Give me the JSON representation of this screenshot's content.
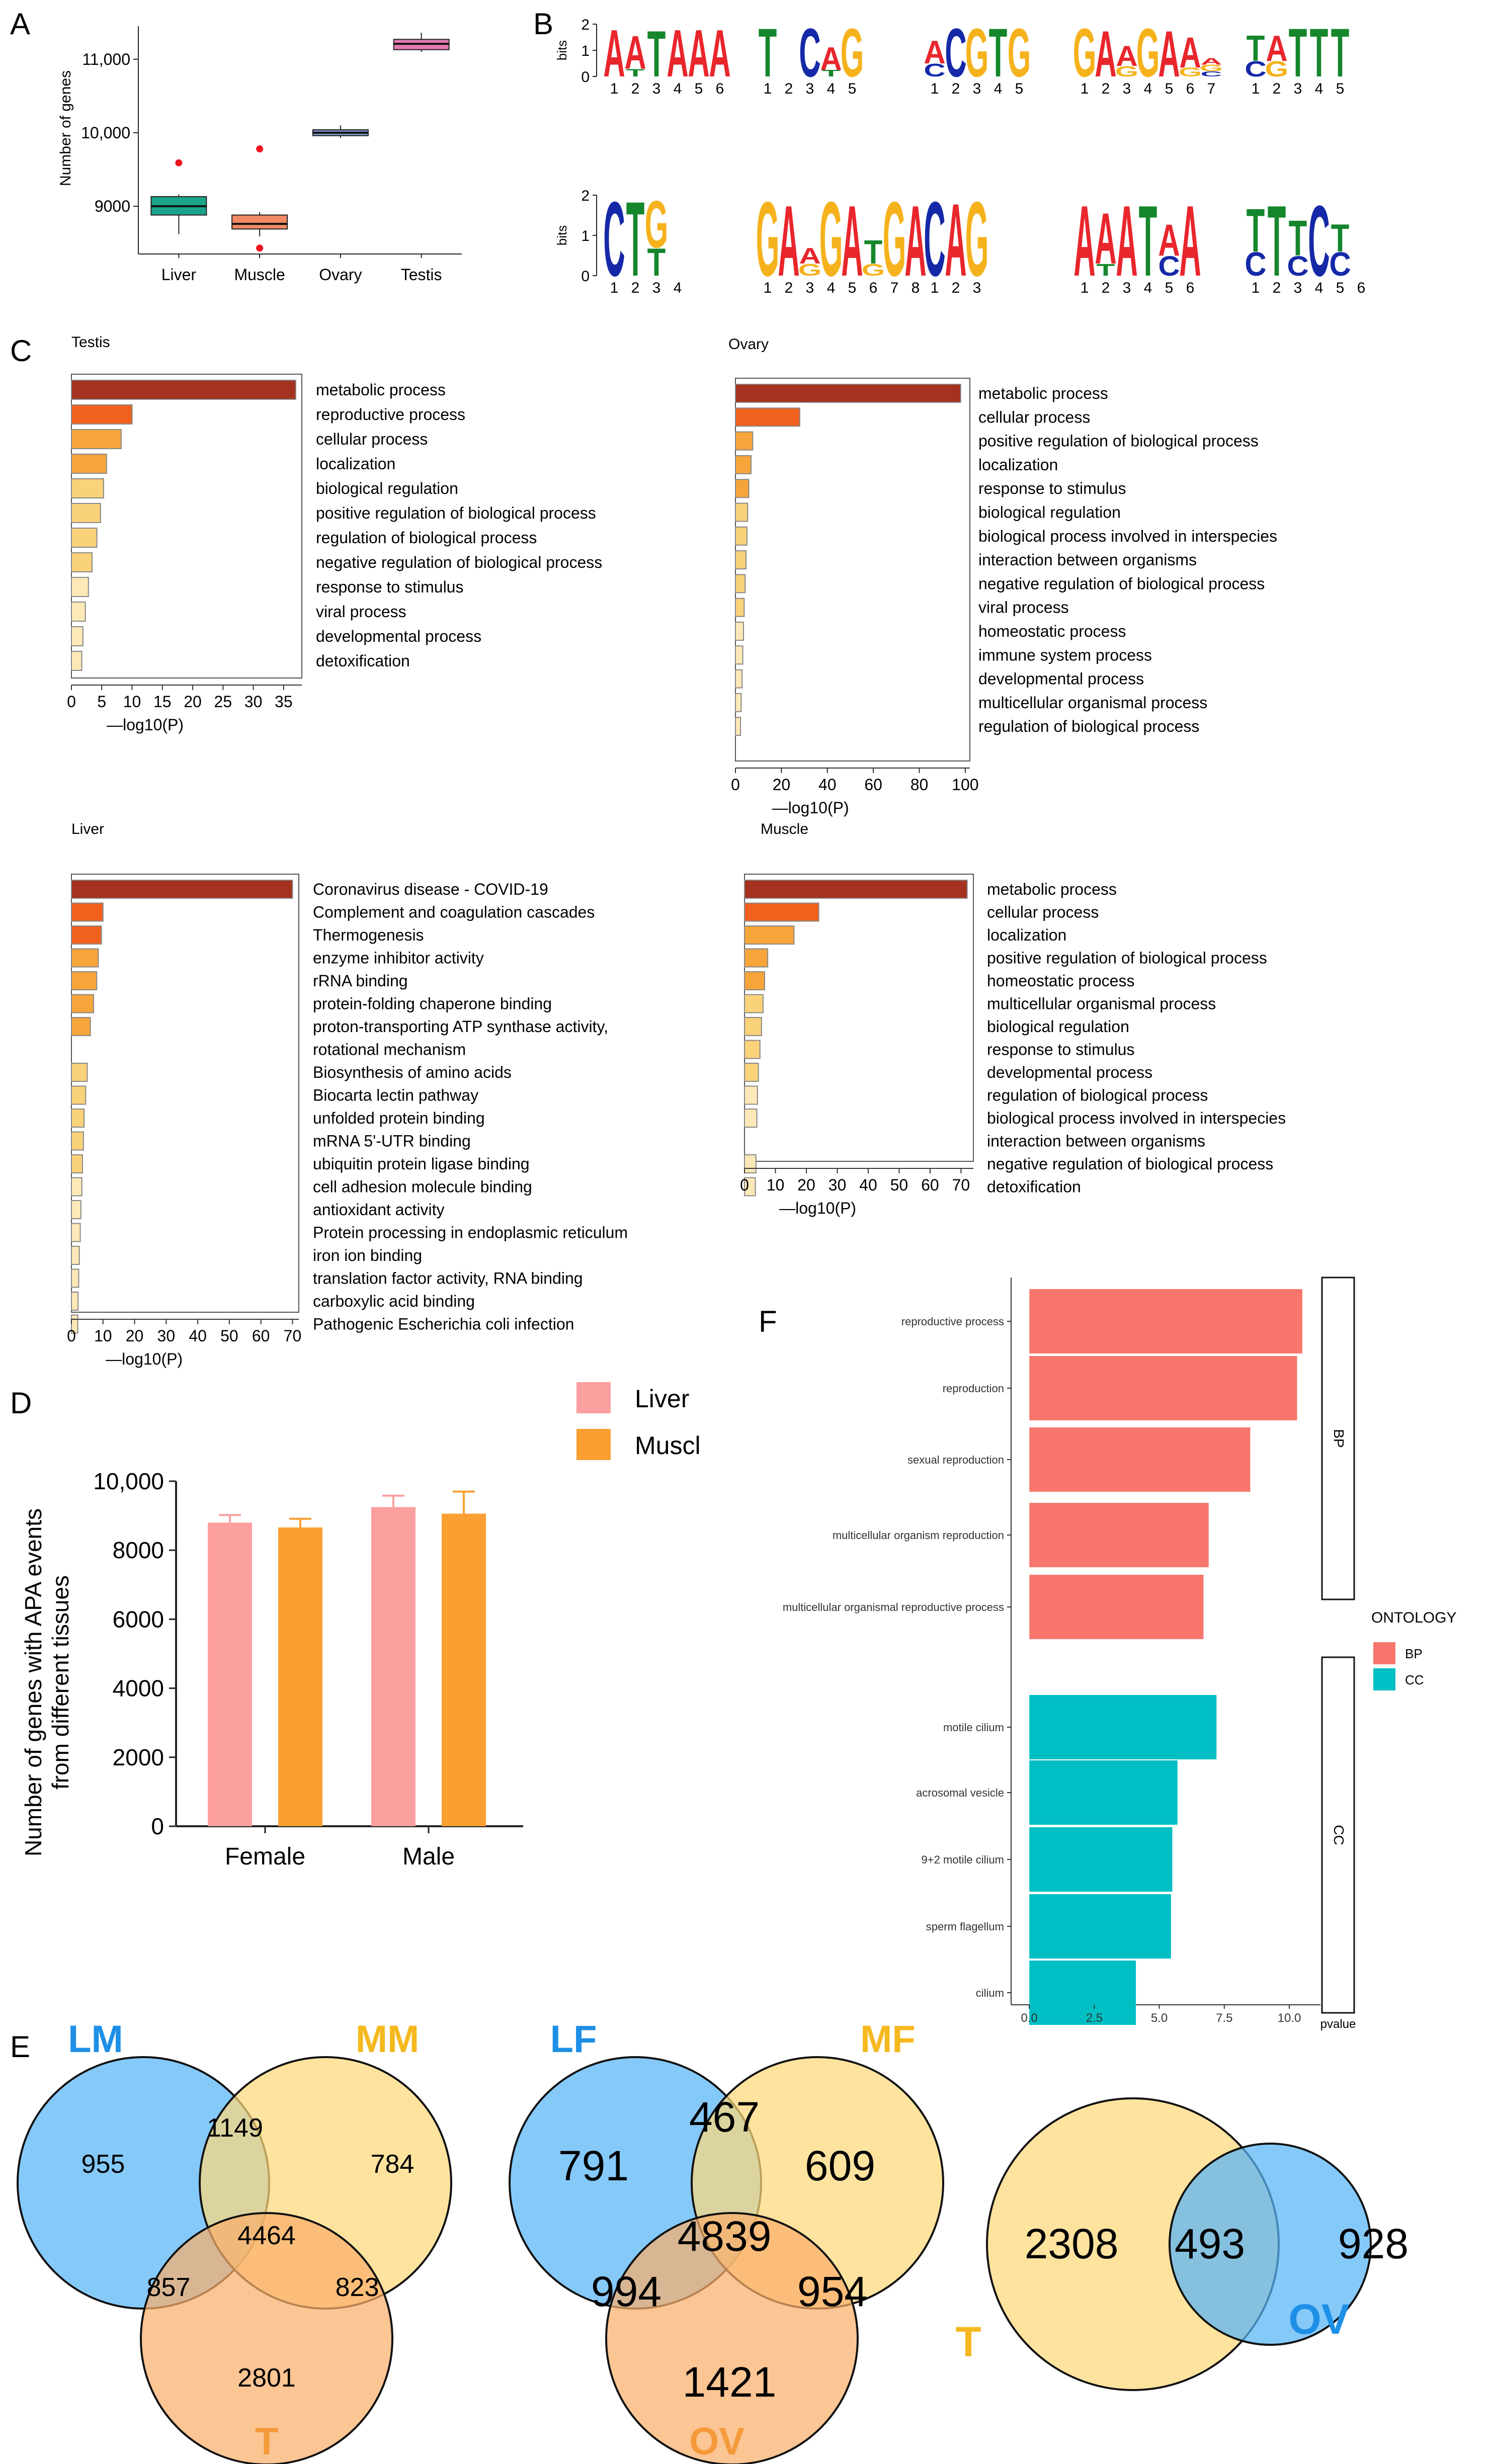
{
  "figure_labels": {
    "A": "A",
    "B": "B",
    "C": "C",
    "D": "D",
    "E": "E",
    "F": "F"
  },
  "colors": {
    "go_dark": "#a5311f",
    "go_mid": "#f0611e",
    "go_orange": "#f5a53a",
    "go_light": "#fad27a",
    "go_pale": "#fde8b8",
    "liver_box": "#1aa58a",
    "muscle_box": "#f08964",
    "ovary_box": "#7c98c6",
    "testis_box": "#e47cb2",
    "liver_bar": "#fc9f9f",
    "muscle_bar": "#fa9f32",
    "bp": "#f8766d",
    "cc": "#00bfc4",
    "venn_blue": "#56b4f6",
    "venn_yellow": "#fdd87a",
    "venn_orange": "#f9ae6b",
    "label_blue": "#1e8fe6",
    "label_yellow": "#f5b81e",
    "label_orange": "#f59a3a",
    "logo_A": "#e8262c",
    "logo_C": "#1529a8",
    "logo_G": "#f5b21c",
    "logo_T": "#15862c"
  },
  "chart_data": [
    {
      "id": "A",
      "type": "box",
      "title": "",
      "ylabel": "Number of genes",
      "ylim": [
        8350,
        11450
      ],
      "yticks": [
        9000,
        10000,
        11000
      ],
      "ytick_labels": [
        "9000",
        "10,000",
        "11,000"
      ],
      "categories": [
        "Liver",
        "Muscle",
        "Ovary",
        "Testis"
      ],
      "boxes": [
        {
          "name": "Liver",
          "min": 8620,
          "q1": 8880,
          "median": 9000,
          "q3": 9130,
          "max": 9160,
          "outliers": [
            9590
          ]
        },
        {
          "name": "Muscle",
          "min": 8590,
          "q1": 8690,
          "median": 8760,
          "q3": 8880,
          "max": 8920,
          "outliers": [
            9780,
            8430
          ]
        },
        {
          "name": "Ovary",
          "min": 9930,
          "q1": 9960,
          "median": 10000,
          "q3": 10040,
          "max": 10100,
          "outliers": []
        },
        {
          "name": "Testis",
          "min": 11100,
          "q1": 11130,
          "median": 11210,
          "q3": 11270,
          "max": 11360,
          "outliers": []
        }
      ]
    },
    {
      "id": "B",
      "type": "sequence_logo",
      "ylabel": "bits",
      "ytick_labels": [
        "0",
        "1",
        "2"
      ],
      "motifs": [
        {
          "positions": [
            [
              {
                "l": "A",
                "h": 1.85
              }
            ],
            [
              {
                "l": "A",
                "h": 1.3
              },
              {
                "l": "T",
                "h": 0.3
              }
            ],
            [
              {
                "l": "T",
                "h": 1.8
              }
            ],
            [
              {
                "l": "A",
                "h": 1.85
              }
            ],
            [
              {
                "l": "A",
                "h": 1.85
              }
            ],
            [
              {
                "l": "A",
                "h": 1.85
              }
            ]
          ]
        },
        {
          "positions": [
            [
              {
                "l": "T",
                "h": 1.9
              }
            ],
            [],
            [
              {
                "l": "C",
                "h": 1.9
              }
            ],
            [
              {
                "l": "A",
                "h": 0.9
              },
              {
                "l": "T",
                "h": 0.25
              }
            ],
            [
              {
                "l": "G",
                "h": 1.9
              }
            ]
          ]
        },
        {
          "positions": [
            [
              {
                "l": "A",
                "h": 0.9
              },
              {
                "l": "C",
                "h": 0.5
              }
            ],
            [
              {
                "l": "C",
                "h": 1.9
              }
            ],
            [
              {
                "l": "G",
                "h": 1.9
              }
            ],
            [
              {
                "l": "T",
                "h": 1.9
              }
            ],
            [
              {
                "l": "G",
                "h": 1.9
              }
            ]
          ]
        },
        {
          "positions": [
            [
              {
                "l": "G",
                "h": 1.9
              }
            ],
            [
              {
                "l": "A",
                "h": 1.8
              }
            ],
            [
              {
                "l": "A",
                "h": 0.8
              },
              {
                "l": "G",
                "h": 0.4
              }
            ],
            [
              {
                "l": "G",
                "h": 1.9
              }
            ],
            [
              {
                "l": "A",
                "h": 1.8
              }
            ],
            [
              {
                "l": "A",
                "h": 1.2
              },
              {
                "l": "G",
                "h": 0.35
              }
            ],
            [
              {
                "l": "G",
                "h": 0.25
              },
              {
                "l": "A",
                "h": 0.25
              },
              {
                "l": "C",
                "h": 0.2
              }
            ]
          ]
        },
        {
          "positions": [
            [
              {
                "l": "T",
                "h": 1.0
              },
              {
                "l": "C",
                "h": 0.6
              }
            ],
            [
              {
                "l": "A",
                "h": 1.0
              },
              {
                "l": "G",
                "h": 0.6
              }
            ],
            [
              {
                "l": "T",
                "h": 1.9
              }
            ],
            [
              {
                "l": "T",
                "h": 1.9
              }
            ],
            [
              {
                "l": "T",
                "h": 1.9
              }
            ]
          ]
        },
        {
          "positions": [
            [
              {
                "l": "C",
                "h": 1.9
              }
            ],
            [
              {
                "l": "T",
                "h": 1.9
              }
            ],
            [
              {
                "l": "G",
                "h": 1.2
              },
              {
                "l": "T",
                "h": 0.7
              }
            ],
            []
          ]
        },
        {
          "positions": [
            [
              {
                "l": "G",
                "h": 1.9
              }
            ],
            [
              {
                "l": "A",
                "h": 1.8
              }
            ],
            [
              {
                "l": "A",
                "h": 0.4
              },
              {
                "l": "G",
                "h": 0.3
              }
            ],
            [
              {
                "l": "G",
                "h": 1.9
              }
            ],
            [
              {
                "l": "A",
                "h": 1.8
              }
            ],
            [
              {
                "l": "T",
                "h": 0.6
              },
              {
                "l": "G",
                "h": 0.3
              }
            ],
            [
              {
                "l": "G",
                "h": 1.9
              }
            ],
            [
              {
                "l": "A",
                "h": 1.8
              }
            ]
          ]
        },
        {
          "positions": [
            [
              {
                "l": "C",
                "h": 1.9
              }
            ],
            [
              {
                "l": "A",
                "h": 1.85
              }
            ],
            [
              {
                "l": "G",
                "h": 1.9
              }
            ]
          ]
        },
        {
          "positions": [
            [
              {
                "l": "A",
                "h": 1.8
              }
            ],
            [
              {
                "l": "A",
                "h": 1.3
              },
              {
                "l": "T",
                "h": 0.3
              }
            ],
            [
              {
                "l": "A",
                "h": 1.8
              }
            ],
            [
              {
                "l": "T",
                "h": 1.8
              }
            ],
            [
              {
                "l": "A",
                "h": 0.8
              },
              {
                "l": "C",
                "h": 0.5
              }
            ],
            [
              {
                "l": "A",
                "h": 1.8
              }
            ]
          ]
        },
        {
          "positions": [
            [
              {
                "l": "T",
                "h": 1.1
              },
              {
                "l": "C",
                "h": 0.6
              }
            ],
            [
              {
                "l": "T",
                "h": 1.8
              }
            ],
            [
              {
                "l": "T",
                "h": 0.9
              },
              {
                "l": "C",
                "h": 0.5
              }
            ],
            [
              {
                "l": "C",
                "h": 1.8
              }
            ],
            [
              {
                "l": "T",
                "h": 0.7
              },
              {
                "l": "C",
                "h": 0.6
              }
            ],
            []
          ]
        }
      ]
    },
    {
      "id": "C-Testis",
      "type": "bar",
      "orientation": "horizontal",
      "title": "Testis",
      "xlabel": "—log10(P)",
      "xlim": [
        0,
        38
      ],
      "xticks": [
        0,
        5,
        10,
        15,
        20,
        25,
        30,
        35
      ],
      "categories": [
        "metabolic process",
        "reproductive process",
        "cellular process",
        "localization",
        "biological regulation",
        "positive regulation of biological process",
        "regulation of biological process",
        "negative regulation of biological process",
        "response to stimulus",
        "viral process",
        "developmental process",
        "detoxification"
      ],
      "values": [
        37,
        10,
        8.2,
        5.8,
        5.3,
        4.8,
        4.2,
        3.4,
        2.8,
        2.3,
        1.9,
        1.7
      ]
    },
    {
      "id": "C-Ovary",
      "type": "bar",
      "orientation": "horizontal",
      "title": "Ovary",
      "xlabel": "—log10(P)",
      "xlim": [
        0,
        102
      ],
      "xticks": [
        0,
        20,
        40,
        60,
        80,
        100
      ],
      "categories": [
        "metabolic process",
        "cellular process",
        "positive regulation of biological process",
        "localization",
        "response to stimulus",
        "biological regulation",
        "biological process involved in interspecies",
        "interaction between organisms",
        "negative regulation of biological process",
        "viral process",
        "homeostatic process",
        "immune system process",
        "developmental process",
        "multicellular organismal process",
        "regulation of biological process"
      ],
      "values": [
        98,
        28,
        7.5,
        6.8,
        5.8,
        5.3,
        5.0,
        4.6,
        4.2,
        3.8,
        3.5,
        3.2,
        2.9,
        2.5,
        2.2
      ]
    },
    {
      "id": "C-Liver",
      "type": "bar",
      "orientation": "horizontal",
      "title": "Liver",
      "xlabel": "—log10(P)",
      "xlim": [
        0,
        72
      ],
      "xticks": [
        0,
        10,
        20,
        30,
        40,
        50,
        60,
        70
      ],
      "categories": [
        "Coronavirus disease - COVID-19",
        "Complement and coagulation cascades",
        "Thermogenesis",
        "enzyme inhibitor activity",
        "rRNA binding",
        "protein-folding chaperone binding",
        "proton-transporting ATP synthase activity,",
        "rotational mechanism",
        "Biosynthesis of amino acids",
        "Biocarta lectin pathway",
        "unfolded protein binding",
        "mRNA 5'-UTR binding",
        "ubiquitin protein ligase binding",
        "cell adhesion molecule binding",
        "antioxidant activity",
        "Protein processing in endoplasmic reticulum",
        "iron ion binding",
        "translation factor activity, RNA binding",
        "carboxylic acid binding",
        "Pathogenic Escherichia coli infection"
      ],
      "values": [
        70,
        10,
        9.5,
        8.5,
        8,
        7,
        6,
        0,
        5,
        4.5,
        4,
        3.8,
        3.5,
        3.3,
        3,
        2.8,
        2.5,
        2.3,
        2.1,
        2
      ]
    },
    {
      "id": "C-Muscle",
      "type": "bar",
      "orientation": "horizontal",
      "title": "Muscle",
      "xlabel": "—log10(P)",
      "xlim": [
        0,
        74
      ],
      "xticks": [
        0,
        10,
        20,
        30,
        40,
        50,
        60,
        70
      ],
      "categories": [
        "metabolic process",
        "cellular process",
        "localization",
        "positive regulation of biological process",
        "homeostatic process",
        "multicellular organismal process",
        "biological regulation",
        "response to stimulus",
        "developmental process",
        "regulation of biological process",
        "biological process involved in interspecies",
        "interaction between organisms",
        "negative regulation of biological process",
        "detoxification"
      ],
      "values": [
        72,
        24,
        16,
        7.5,
        6.5,
        6,
        5.5,
        5,
        4.5,
        4.2,
        4,
        0,
        3.7,
        3.5
      ]
    },
    {
      "id": "D",
      "type": "bar",
      "title": "",
      "ylabel": "Number of genes with APA events",
      "ylabel2": "from different tissues",
      "ylim": [
        0,
        10000
      ],
      "yticks": [
        0,
        2000,
        4000,
        6000,
        8000,
        10000
      ],
      "ytick_labels": [
        "0",
        "2000",
        "4000",
        "6000",
        "8000",
        "10,000"
      ],
      "categories": [
        "Female",
        "Male"
      ],
      "series": [
        {
          "name": "Liver",
          "values": [
            8800,
            9250
          ],
          "errors": [
            220,
            330
          ]
        },
        {
          "name": "Muscl",
          "values": [
            8660,
            9060
          ],
          "errors": [
            250,
            640
          ]
        }
      ]
    },
    {
      "id": "F",
      "type": "bar",
      "orientation": "horizontal",
      "title": "",
      "xlabel": "pvalue",
      "xlim": [
        -0.7,
        11.2
      ],
      "xticks": [
        0,
        2.5,
        5,
        7.5,
        10
      ],
      "xtick_labels": [
        "0.0",
        "2.5",
        "5.0",
        "7.5",
        "10.0"
      ],
      "legend_title": "ONTOLOGY",
      "groups": [
        {
          "name": "BP",
          "categories": [
            "reproductive process",
            "reproduction",
            "sexual reproduction",
            "multicellular organism reproduction",
            "multicellular organismal reproductive process"
          ],
          "values": [
            10.5,
            10.3,
            8.5,
            6.9,
            6.7
          ]
        },
        {
          "name": "CC",
          "categories": [
            "motile cilium",
            "acrosomal vesicle",
            "9+2 motile cilium",
            "sperm flagellum",
            "cilium"
          ],
          "values": [
            7.2,
            5.7,
            5.5,
            5.45,
            4.1
          ]
        }
      ]
    },
    {
      "id": "E",
      "type": "venn",
      "diagrams": [
        {
          "sets": [
            "LM",
            "MM",
            "T"
          ],
          "regions": {
            "a": "955",
            "b": "784",
            "c": "2801",
            "ab": "1149",
            "ac": "857",
            "bc": "823",
            "abc": "4464"
          }
        },
        {
          "sets": [
            "LF",
            "MF",
            "OV"
          ],
          "regions": {
            "a": "791",
            "b": "609",
            "c": "1421",
            "ab": "467",
            "ac": "994",
            "bc": "954",
            "abc": "4839"
          }
        },
        {
          "sets": [
            "T",
            "OV"
          ],
          "regions": {
            "a": "2308",
            "b": "928",
            "ab": "493"
          }
        }
      ]
    }
  ]
}
